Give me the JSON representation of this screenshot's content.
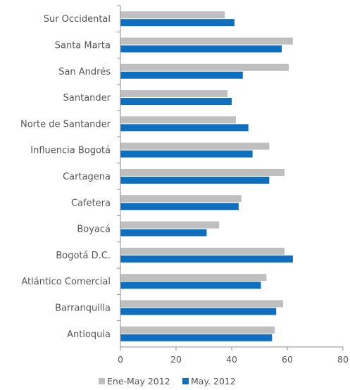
{
  "chart_data": {
    "type": "bar",
    "orientation": "horizontal",
    "categories": [
      "Sur Occidental",
      "Santa Marta",
      "San Andrés",
      "Santander",
      "Norte de Santander",
      "Influencia Bogotá",
      "Cartagena",
      "Cafetera",
      "Boyacá",
      "Bogotá D.C.",
      "Atlántico Comercial",
      "Barranquilla",
      "Antioquia"
    ],
    "series": [
      {
        "name": "Ene-May 2012",
        "color": "#bfbfbf",
        "values": [
          37.5,
          62,
          60.5,
          38.5,
          41.5,
          53.5,
          59,
          43.5,
          35.5,
          59,
          52.5,
          58.5,
          55.5
        ]
      },
      {
        "name": "May. 2012",
        "color": "#0e6fbe",
        "values": [
          41,
          58,
          44,
          40,
          46,
          47.5,
          53.5,
          42.5,
          31,
          62,
          50.5,
          56,
          54.5
        ]
      }
    ],
    "xlim": [
      0,
      80
    ],
    "xticks": [
      "0",
      "20",
      "40",
      "60",
      "80"
    ],
    "grid": false,
    "legend_position": "bottom",
    "title": "",
    "xlabel": "",
    "ylabel": ""
  }
}
